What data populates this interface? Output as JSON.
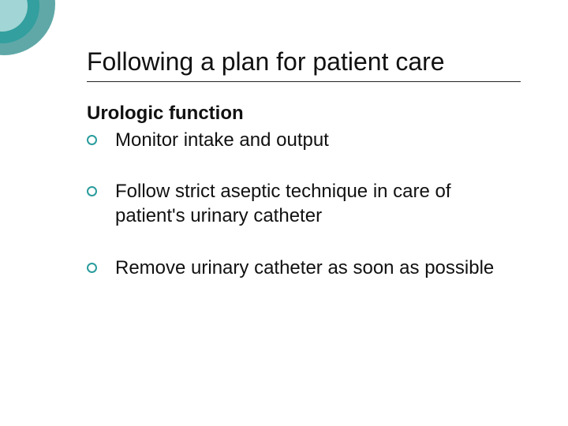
{
  "slide": {
    "title": "Following a plan for patient care",
    "subtitle": "Urologic function",
    "bullets": [
      "Monitor intake and output",
      "Follow strict aseptic technique in care of patient's urinary catheter",
      "Remove urinary catheter as soon as possible"
    ],
    "style": {
      "accent_color": "#2b9c9c",
      "title_fontsize": 32,
      "body_fontsize": 24,
      "background_color": "#ffffff",
      "text_color": "#111111",
      "hr_color": "#222222",
      "decor_colors": [
        "#0b7a7a",
        "#159999",
        "#dff2f2"
      ]
    }
  }
}
